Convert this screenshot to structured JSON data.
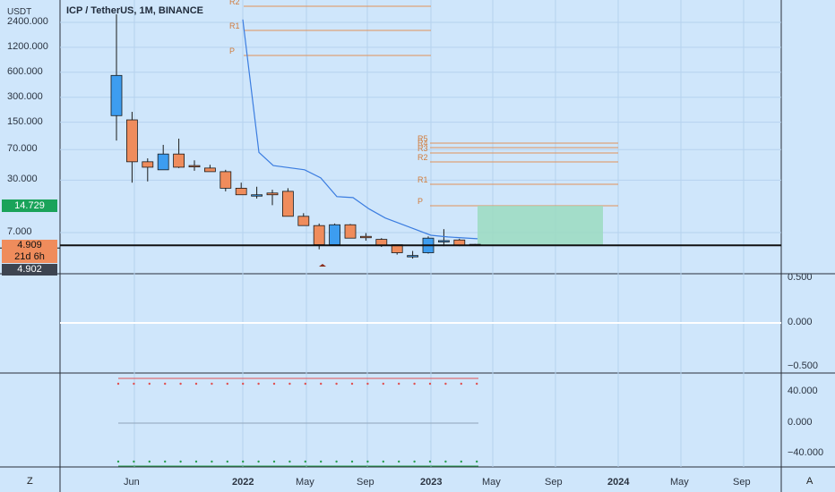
{
  "title": "ICP / TetherUS, 1M, BINANCE",
  "left_axis": {
    "unit": "USDT",
    "ticks": [
      "2400.000",
      "1200.000",
      "600.000",
      "300.000",
      "150.000",
      "70.000",
      "30.000",
      "7.000"
    ],
    "highlight_label": "14.729",
    "price_label": "4.909",
    "countdown_label": "21d 6h",
    "crosshair_label": "4.902"
  },
  "right_axis_osc1": {
    "ticks": [
      "0.500",
      "0.000",
      "−0.500"
    ]
  },
  "right_axis_osc2": {
    "ticks": [
      "40.000",
      "0.000",
      "−40.000"
    ]
  },
  "time_axis": {
    "labels": [
      "Jun",
      "2022",
      "May",
      "Sep",
      "2023",
      "May",
      "Sep",
      "2024",
      "May",
      "Sep"
    ],
    "bold": [
      false,
      true,
      false,
      false,
      true,
      false,
      false,
      true,
      false,
      false
    ],
    "left_corner": "Z",
    "right_corner": "A"
  },
  "pivots_old": [
    "R2",
    "R1",
    "P"
  ],
  "pivots_new": [
    "R5",
    "R4",
    "R3",
    "R2",
    "R1",
    "P"
  ],
  "colors": {
    "background": "#cfe6fb",
    "up": "#3d9df0",
    "down": "#ef8c5c",
    "ma": "#3b7de0",
    "pivot": "#e0925a",
    "projection": "#9bdbbf",
    "highlight": "#1aa35a"
  },
  "chart_data": {
    "type": "candlestick",
    "scale": "log",
    "candles": [
      {
        "o": 180,
        "h": 3000,
        "l": 90,
        "c": 550
      },
      {
        "o": 160,
        "h": 200,
        "l": 28,
        "c": 50
      },
      {
        "o": 50,
        "h": 55,
        "l": 29,
        "c": 43
      },
      {
        "o": 40,
        "h": 80,
        "l": 40,
        "c": 62
      },
      {
        "o": 62,
        "h": 95,
        "l": 42,
        "c": 43
      },
      {
        "o": 45,
        "h": 52,
        "l": 39,
        "c": 44
      },
      {
        "o": 42,
        "h": 46,
        "l": 38,
        "c": 38
      },
      {
        "o": 38,
        "h": 40,
        "l": 22,
        "c": 24
      },
      {
        "o": 24,
        "h": 28,
        "l": 20,
        "c": 20
      },
      {
        "o": 20,
        "h": 25,
        "l": 18,
        "c": 20
      },
      {
        "o": 21,
        "h": 23,
        "l": 15,
        "c": 20
      },
      {
        "o": 22,
        "h": 24,
        "l": 11,
        "c": 11
      },
      {
        "o": 11,
        "h": 12,
        "l": 8.5,
        "c": 8.5
      },
      {
        "o": 8.5,
        "h": 9,
        "l": 4.4,
        "c": 5.0
      },
      {
        "o": 5.0,
        "h": 9,
        "l": 4.9,
        "c": 8.7
      },
      {
        "o": 8.7,
        "h": 8.9,
        "l": 6.0,
        "c": 6.0
      },
      {
        "o": 6.3,
        "h": 6.9,
        "l": 5.6,
        "c": 6.2
      },
      {
        "o": 5.8,
        "h": 6.0,
        "l": 4.7,
        "c": 4.9
      },
      {
        "o": 5.0,
        "h": 5.0,
        "l": 3.8,
        "c": 4.0
      },
      {
        "o": 3.7,
        "h": 4.2,
        "l": 3.4,
        "c": 3.7
      },
      {
        "o": 4.0,
        "h": 6.3,
        "l": 3.9,
        "c": 6.0
      },
      {
        "o": 5.6,
        "h": 7.7,
        "l": 4.8,
        "c": 5.6
      },
      {
        "o": 5.7,
        "h": 5.9,
        "l": 4.8,
        "c": 4.9
      },
      {
        "o": 5.05,
        "h": 5.1,
        "l": 4.9,
        "c": 4.909
      }
    ],
    "ma_line": [
      2600,
      65,
      45,
      40,
      32,
      19,
      18.5,
      13.5,
      10.5,
      6.5,
      6.2,
      5.9
    ],
    "projection_box": {
      "from": 5.0,
      "to": 14.729
    },
    "price_line": 4.909
  }
}
